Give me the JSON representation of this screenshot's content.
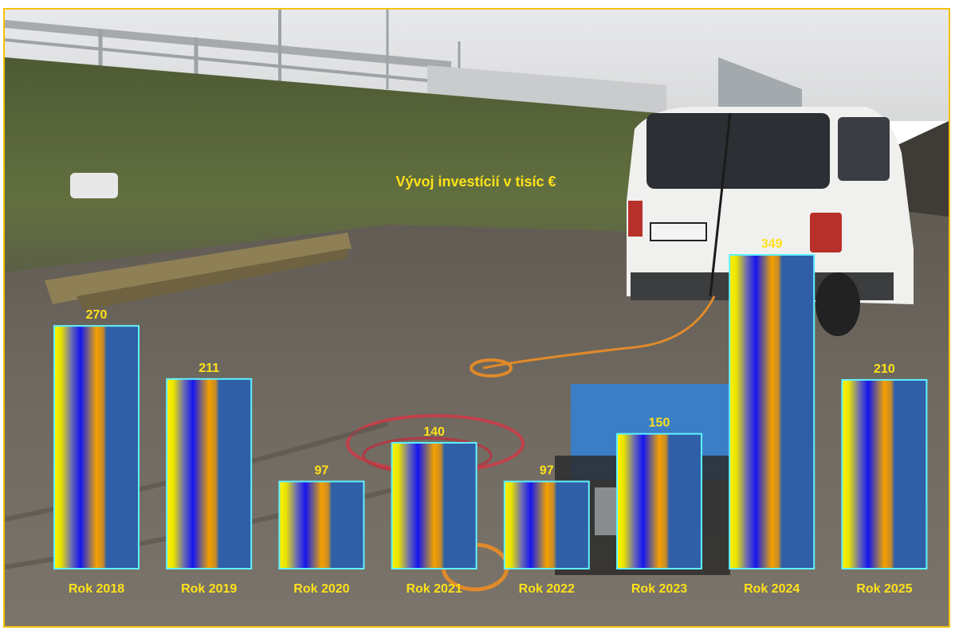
{
  "colors": {
    "frame_border": "#f2c200",
    "title_text": "#ffe11a",
    "value_text": "#ffe11a",
    "category_text": "#ffe11a",
    "bar_border": "#5ff2ff",
    "bar_fill": "#2f5fa6",
    "bar_stripe_yellow": "#ffee00",
    "bar_stripe_blue": "#1a1ae6",
    "bar_stripe_orange": "#f59a00"
  },
  "background": {
    "description_icon": "construction-site-photo",
    "sky": "#e3e4e6",
    "grass": "#5d6b3c",
    "mud": "#6c655c",
    "van": "#f2f2f0",
    "generator": "#3a7fc6",
    "cable_red": "#c2404a",
    "cable_orange": "#e08a2a"
  },
  "chart_data": {
    "type": "bar",
    "title": "Vývoj investícií v tisíc €",
    "categories": [
      "Rok 2018",
      "Rok 2019",
      "Rok 2020",
      "Rok 2021",
      "Rok 2022",
      "Rok 2023",
      "Rok 2024",
      "Rok 2025"
    ],
    "values": [
      270,
      211,
      97,
      140,
      97,
      150,
      349,
      210
    ],
    "value_labels": [
      "270",
      "211",
      "97",
      "140",
      "97",
      "150",
      "349",
      "210"
    ],
    "xlabel": "",
    "ylabel": "",
    "ylim": [
      0,
      349
    ],
    "grid": false,
    "legend": false
  }
}
